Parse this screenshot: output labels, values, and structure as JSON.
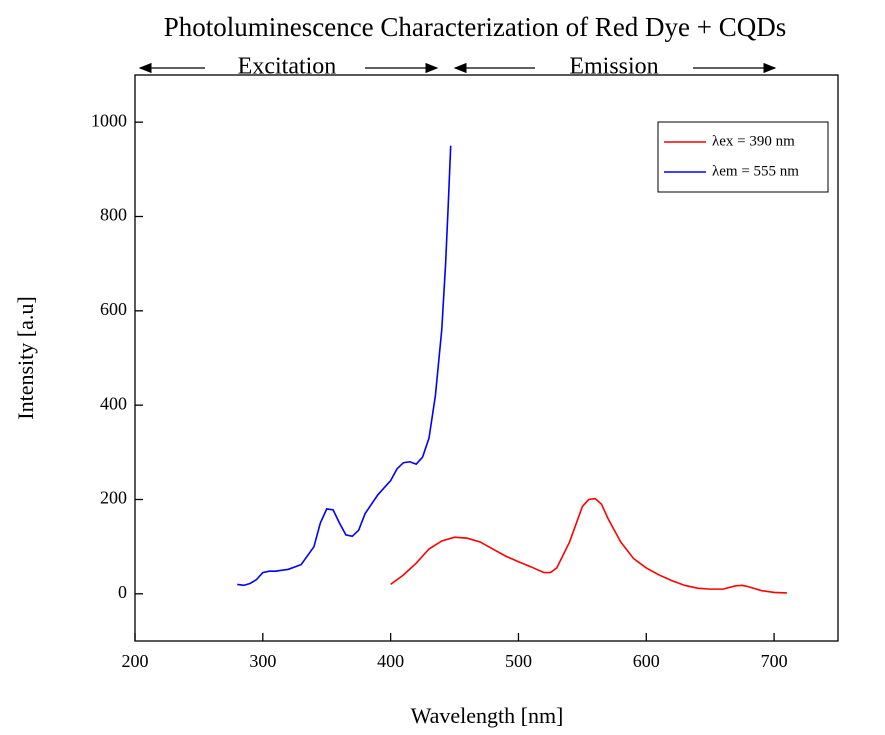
{
  "chart_data": {
    "type": "line",
    "title": "Photoluminescence Characterization of Red Dye + CQDs",
    "xlabel": "Wavelength [nm]",
    "ylabel": "Intensity [a.u]",
    "annotations": [
      "Excitation",
      "Emission"
    ],
    "xlim": [
      200,
      750
    ],
    "xticks": [
      200,
      300,
      400,
      500,
      600,
      700
    ],
    "ylim": [
      -100,
      1100
    ],
    "yticks": [
      0,
      200,
      400,
      600,
      800,
      1000
    ],
    "legend": "upper right",
    "series": [
      {
        "name": "λex = 390 nm",
        "color": "#ff0000",
        "x": [
          400,
          410,
          420,
          430,
          440,
          450,
          460,
          470,
          480,
          490,
          500,
          510,
          520,
          525,
          530,
          540,
          550,
          555,
          560,
          565,
          570,
          580,
          590,
          600,
          610,
          620,
          630,
          640,
          650,
          660,
          670,
          675,
          680,
          690,
          700,
          710
        ],
        "values": [
          20,
          40,
          65,
          95,
          112,
          120,
          118,
          110,
          95,
          80,
          68,
          57,
          45,
          45,
          55,
          110,
          185,
          200,
          202,
          190,
          160,
          110,
          75,
          55,
          40,
          28,
          18,
          12,
          10,
          10,
          17,
          18,
          15,
          7,
          3,
          2
        ]
      },
      {
        "name": "λem = 555 nm",
        "color": "#0000ff",
        "x": [
          280,
          285,
          290,
          295,
          300,
          305,
          310,
          320,
          330,
          340,
          345,
          350,
          355,
          360,
          365,
          370,
          375,
          380,
          385,
          390,
          395,
          400,
          405,
          410,
          415,
          420,
          425,
          430,
          435,
          440,
          443,
          445,
          447
        ],
        "values": [
          20,
          18,
          22,
          30,
          45,
          48,
          48,
          52,
          62,
          100,
          150,
          180,
          178,
          150,
          125,
          122,
          135,
          170,
          190,
          210,
          225,
          240,
          265,
          278,
          280,
          275,
          290,
          330,
          420,
          560,
          700,
          820,
          950
        ]
      }
    ]
  }
}
